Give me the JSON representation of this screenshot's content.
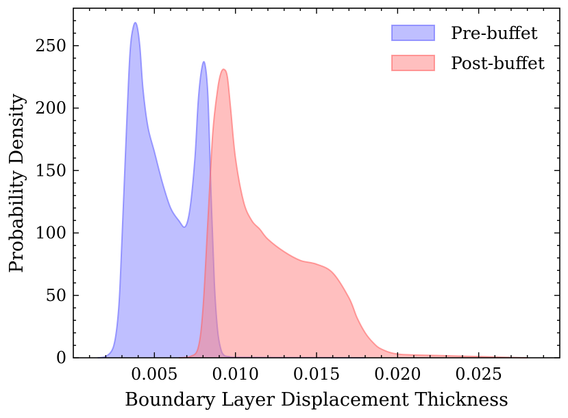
{
  "chart_data": {
    "type": "area",
    "title": "",
    "xlabel": "Boundary Layer Displacement Thickness",
    "ylabel": "Probability Density",
    "xlim": [
      0.0,
      0.03
    ],
    "ylim": [
      0,
      280
    ],
    "xticks": [
      0.005,
      0.01,
      0.015,
      0.02,
      0.025
    ],
    "xtick_labels": [
      "0.005",
      "0.010",
      "0.015",
      "0.020",
      "0.025"
    ],
    "yticks": [
      0,
      50,
      100,
      150,
      200,
      250
    ],
    "ytick_labels": [
      "0",
      "50",
      "100",
      "150",
      "200",
      "250"
    ],
    "grid": false,
    "legend_position": "upper-right",
    "series": [
      {
        "name": "Pre-buffet",
        "fill": "#7f7fff",
        "stroke": "#6666ff",
        "x": [
          0.0015,
          0.002,
          0.0025,
          0.0028,
          0.003,
          0.0033,
          0.0035,
          0.0037,
          0.0039,
          0.0041,
          0.0043,
          0.0046,
          0.005,
          0.0055,
          0.006,
          0.0065,
          0.0069,
          0.0072,
          0.0075,
          0.0077,
          0.0079,
          0.0081,
          0.0083,
          0.0085,
          0.0087,
          0.0089,
          0.0091,
          0.0093,
          0.0096,
          0.01,
          0.012,
          0.015,
          0.018
        ],
        "y": [
          0,
          1,
          10,
          40,
          95,
          190,
          245,
          265,
          267,
          250,
          215,
          185,
          165,
          140,
          120,
          110,
          105,
          120,
          160,
          205,
          230,
          236,
          210,
          130,
          60,
          22,
          7,
          2,
          1,
          0.5,
          0.3,
          0.2,
          0
        ]
      },
      {
        "name": "Post-buffet",
        "fill": "#ff7f7f",
        "stroke": "#ff6666",
        "x": [
          0.0065,
          0.0072,
          0.0077,
          0.008,
          0.0083,
          0.0086,
          0.0089,
          0.0091,
          0.0093,
          0.0095,
          0.0097,
          0.01,
          0.0105,
          0.011,
          0.0115,
          0.012,
          0.013,
          0.014,
          0.015,
          0.016,
          0.017,
          0.0175,
          0.018,
          0.0185,
          0.019,
          0.02,
          0.022,
          0.025,
          0.028
        ],
        "y": [
          0,
          1,
          8,
          40,
          110,
          180,
          215,
          228,
          231,
          225,
          200,
          160,
          125,
          110,
          103,
          95,
          85,
          78,
          75,
          68,
          48,
          32,
          20,
          12,
          7,
          3,
          2,
          1,
          0
        ]
      }
    ]
  }
}
